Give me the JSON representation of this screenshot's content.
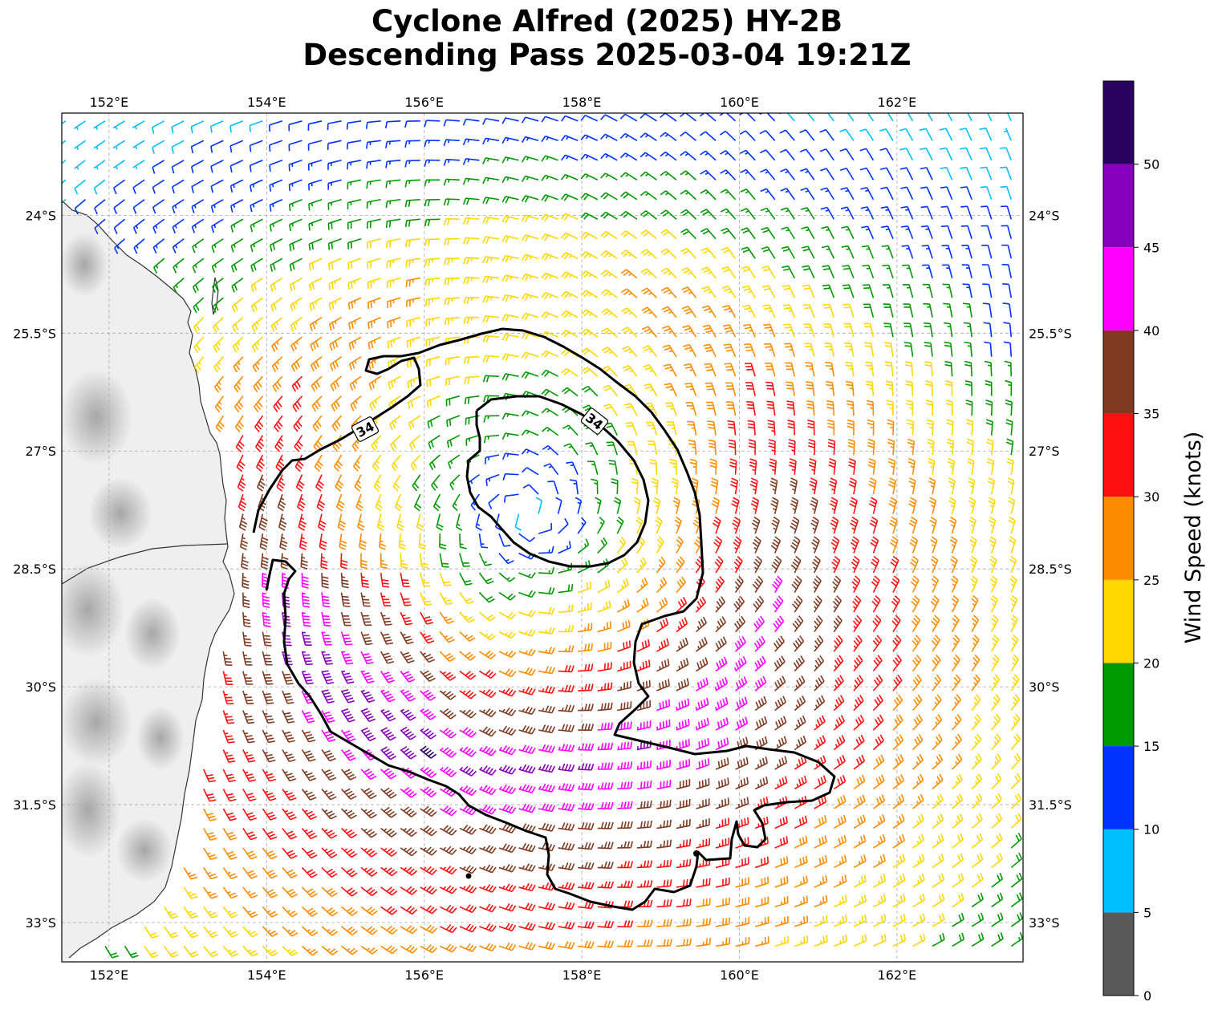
{
  "title": {
    "line1": "Cyclone Alfred (2025) HY-2B",
    "line2": "Descending Pass 2025-03-04 19:21Z"
  },
  "map": {
    "lon_ticks": [
      "152°E",
      "154°E",
      "156°E",
      "158°E",
      "160°E",
      "162°E"
    ],
    "lat_ticks": [
      "24°S",
      "25.5°S",
      "27°S",
      "28.5°S",
      "30°S",
      "31.5°S",
      "33°S"
    ],
    "lon_values": [
      152,
      154,
      156,
      158,
      160,
      162
    ],
    "lat_values": [
      -24,
      -25.5,
      -27,
      -28.5,
      -30,
      -31.5,
      -33
    ],
    "extent": {
      "lon_min": 151.4,
      "lon_max": 163.6,
      "lat_min": -33.5,
      "lat_max": -22.7
    },
    "contour_label": "34",
    "contour_label_count": 2,
    "cyclone_center": {
      "lon": 157.3,
      "lat": -27.8
    },
    "barb_grid_step_deg": 0.25
  },
  "colorbar": {
    "label": "Wind Speed (knots)",
    "ticks": [
      "0",
      "5",
      "10",
      "15",
      "20",
      "25",
      "30",
      "35",
      "40",
      "45",
      "50"
    ],
    "bins": [
      {
        "min": 0,
        "max": 5,
        "color": "#595959"
      },
      {
        "min": 5,
        "max": 10,
        "color": "#00bfff"
      },
      {
        "min": 10,
        "max": 15,
        "color": "#0033ff"
      },
      {
        "min": 15,
        "max": 20,
        "color": "#009900"
      },
      {
        "min": 20,
        "max": 25,
        "color": "#ffd700"
      },
      {
        "min": 25,
        "max": 30,
        "color": "#ff8c00"
      },
      {
        "min": 30,
        "max": 35,
        "color": "#ff1010"
      },
      {
        "min": 35,
        "max": 40,
        "color": "#7f3a20"
      },
      {
        "min": 40,
        "max": 45,
        "color": "#ff00ff"
      },
      {
        "min": 45,
        "max": 50,
        "color": "#8800bb"
      },
      {
        "min": 50,
        "max": 55,
        "color": "#2a0060"
      }
    ]
  }
}
